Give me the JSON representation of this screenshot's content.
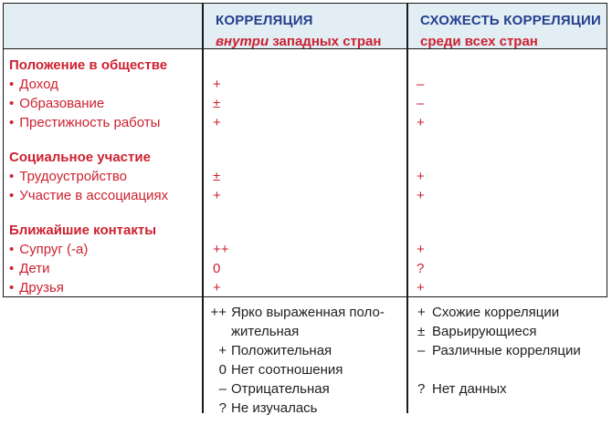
{
  "colors": {
    "line": "#1a1a1a",
    "hdr_bg": "#e2edf4",
    "blue": "#24408e",
    "red": "#cd2130",
    "ink": "#1f1f1f"
  },
  "header": {
    "col2_title": "КОРРЕЛЯЦИЯ",
    "col2_sub_italic": "внутри",
    "col2_sub_rest": " западных стран",
    "col3_title": "СХОЖЕСТЬ КОРРЕЛЯЦИИ",
    "col3_sub": "среди всех стран"
  },
  "body": {
    "bullet": "•",
    "groups": [
      {
        "title": "Положение в обществе",
        "items": [
          {
            "label": "Доход",
            "col2": "+",
            "col3": "–"
          },
          {
            "label": "Образование",
            "col2": "±",
            "col3": "–"
          },
          {
            "label": "Престижность работы",
            "col2": "+",
            "col3": "+"
          }
        ]
      },
      {
        "title": "Социальное участие",
        "items": [
          {
            "label": "Трудоустройство",
            "col2": "±",
            "col3": "+"
          },
          {
            "label": "Участие в ассоциациях",
            "col2": "+",
            "col3": "+"
          }
        ]
      },
      {
        "title": "Ближайшие контакты",
        "items": [
          {
            "label": "Супруг (-а)",
            "col2": "++",
            "col3": "+"
          },
          {
            "label": "Дети",
            "col2": "0",
            "col3": "?"
          },
          {
            "label": "Друзья",
            "col2": "+",
            "col3": "+"
          }
        ]
      }
    ]
  },
  "legend": {
    "left": [
      {
        "sym": "++",
        "text": "Ярко выраженная поло-"
      },
      {
        "sym": "",
        "text": "жительная"
      },
      {
        "sym": "+",
        "text": "Положительная"
      },
      {
        "sym": "0",
        "text": "Нет соотношения"
      },
      {
        "sym": "–",
        "text": "Отрицательная"
      },
      {
        "sym": "?",
        "text": "Не изучалась"
      }
    ],
    "right": [
      {
        "sym": "+",
        "text": "Схожие корреляции"
      },
      {
        "sym": "±",
        "text": "Варьирующиеся"
      },
      {
        "sym": "–",
        "text": "Различные корреляции"
      },
      {
        "sym": "",
        "text": ""
      },
      {
        "sym": "?",
        "text": "Нет данных"
      }
    ]
  }
}
